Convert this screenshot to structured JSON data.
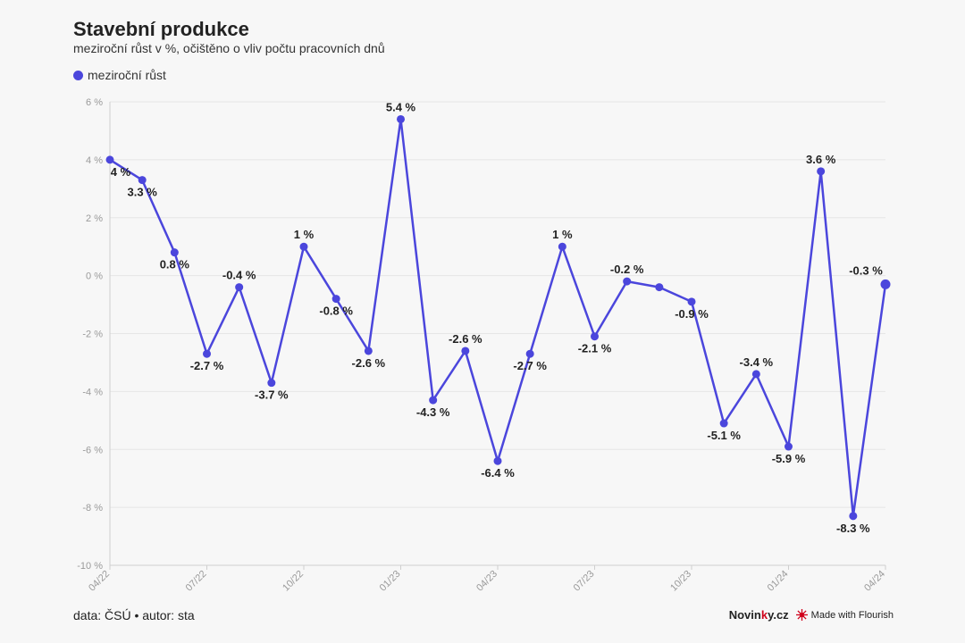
{
  "title": "Stavební produkce",
  "subtitle": "meziroční růst v %, očištěno o vliv počtu pracovních dnů",
  "legend": {
    "label": "meziroční růst",
    "color": "#4b46dc"
  },
  "footer": {
    "source": "data: ČSÚ • autor: sta",
    "brand_a": "Novin",
    "brand_b": "k",
    "brand_c": "y.cz",
    "flourish": "Made with Flourish"
  },
  "chart_data": {
    "type": "line",
    "x": [
      "04/22",
      "05/22",
      "06/22",
      "07/22",
      "08/22",
      "09/22",
      "10/22",
      "11/22",
      "12/22",
      "01/23",
      "02/23",
      "03/23",
      "04/23",
      "05/23",
      "06/23",
      "07/23",
      "08/23",
      "09/23",
      "10/23",
      "11/23",
      "12/23",
      "01/24",
      "02/24",
      "03/24",
      "04/24"
    ],
    "series": [
      {
        "name": "meziroční růst",
        "values": [
          4,
          3.3,
          0.8,
          -2.7,
          -0.4,
          -3.7,
          1,
          -0.8,
          -2.6,
          5.4,
          -4.3,
          -2.6,
          -6.4,
          -2.7,
          1,
          -2.1,
          -0.2,
          -0.4,
          -0.9,
          -5.1,
          -3.4,
          -5.9,
          3.6,
          -8.3,
          -0.3
        ]
      }
    ],
    "point_labels": [
      "4 %",
      "3.3 %",
      "0.8 %",
      "-2.7 %",
      "-0.4 %",
      "-3.7 %",
      "1 %",
      "-0.8 %",
      "-2.6 %",
      "5.4 %",
      "-4.3 %",
      "-2.6 %",
      "-6.4 %",
      "-2.7 %",
      "1 %",
      "-2.1 %",
      "-0.2 %",
      "",
      "-0.9 %",
      "-5.1 %",
      "-3.4 %",
      "-5.9 %",
      "3.6 %",
      "-8.3 %",
      "-0.3 %"
    ],
    "y_ticks": [
      6,
      4,
      2,
      0,
      -2,
      -4,
      -6,
      -8,
      -10
    ],
    "y_tick_labels": [
      "6 %",
      "4 %",
      "2 %",
      "0 %",
      "-2 %",
      "-4 %",
      "-6 %",
      "-8 %",
      "-10 %"
    ],
    "x_ticks": [
      "04/22",
      "07/22",
      "10/22",
      "01/23",
      "04/23",
      "07/23",
      "10/23",
      "01/24",
      "04/24"
    ],
    "ylim": [
      -10,
      6
    ],
    "grid": true,
    "legend_position": "top-left",
    "line_color": "#4b46dc"
  }
}
